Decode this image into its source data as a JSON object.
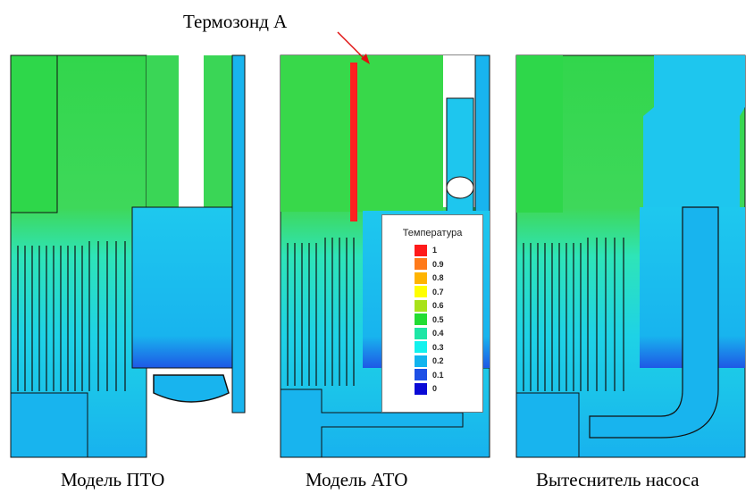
{
  "probe": {
    "label": "Термозонд A",
    "color": "#ff2020"
  },
  "panels": [
    {
      "caption": "Модель ПТО"
    },
    {
      "caption": "Модель АТО"
    },
    {
      "caption": "Вытеснитель насоса"
    }
  ],
  "legend": {
    "title": "Температура",
    "entries": [
      {
        "value": "1",
        "color": "#ff1a1a"
      },
      {
        "value": "0.9",
        "color": "#ff7a1a"
      },
      {
        "value": "0.8",
        "color": "#ffb400"
      },
      {
        "value": "0.7",
        "color": "#ffff00"
      },
      {
        "value": "0.6",
        "color": "#a8e21a"
      },
      {
        "value": "0.5",
        "color": "#22dd33"
      },
      {
        "value": "0.4",
        "color": "#1ee6a6"
      },
      {
        "value": "0.3",
        "color": "#12f2ee"
      },
      {
        "value": "0.2",
        "color": "#12b4ee"
      },
      {
        "value": "0.1",
        "color": "#1e50e6"
      },
      {
        "value": "0",
        "color": "#0a0ad6"
      }
    ]
  },
  "colors": {
    "hot_zone": "#38d84a",
    "mid_zone": "#2ee8c0",
    "cool_zone": "#16b8ee",
    "cold_zone": "#1e50e6",
    "wall": "#ffffff",
    "outline": "#111111"
  }
}
